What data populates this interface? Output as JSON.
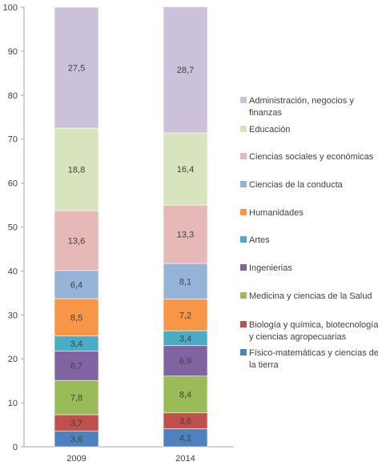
{
  "chart_data": {
    "type": "bar",
    "stacked": true,
    "categories": [
      "2009",
      "2014"
    ],
    "ylim": [
      0,
      100
    ],
    "yticks": [
      "0",
      "10",
      "20",
      "30",
      "40",
      "50",
      "60",
      "70",
      "80",
      "90",
      "100"
    ],
    "grid": false,
    "legend_position": "right",
    "series": [
      {
        "name": "Físico-matemáticas y ciencias de la tierra",
        "color": "#4f81bd",
        "values": [
          3.6,
          4.1
        ],
        "labels": [
          "3,6",
          "4,1"
        ]
      },
      {
        "name": "Biología y química, biotecnología y ciencias agropecuarias",
        "color": "#c0504d",
        "values": [
          3.7,
          3.6
        ],
        "labels": [
          "3,7",
          "3,6"
        ]
      },
      {
        "name": "Medicina y ciencias de la Salud",
        "color": "#9bbb59",
        "values": [
          7.8,
          8.4
        ],
        "labels": [
          "7,8",
          "8,4"
        ]
      },
      {
        "name": "Ingenierias",
        "color": "#8064a2",
        "values": [
          6.7,
          6.9
        ],
        "labels": [
          "6,7",
          "6,9"
        ]
      },
      {
        "name": "Artes",
        "color": "#4bacc6",
        "values": [
          3.4,
          3.4
        ],
        "labels": [
          "3,4",
          "3,4"
        ]
      },
      {
        "name": "Humanidades",
        "color": "#f79646",
        "values": [
          8.5,
          7.2
        ],
        "labels": [
          "8,5",
          "7,2"
        ]
      },
      {
        "name": "Ciencias de la conducta",
        "color": "#95b3d7",
        "values": [
          6.4,
          8.1
        ],
        "labels": [
          "6,4",
          "8,1"
        ]
      },
      {
        "name": "Ciencias sociales y económicas",
        "color": "#e6b9b8",
        "values": [
          13.6,
          13.3
        ],
        "labels": [
          "13,6",
          "13,3"
        ]
      },
      {
        "name": "Educación",
        "color": "#d7e4bd",
        "values": [
          18.8,
          16.4
        ],
        "labels": [
          "18,8",
          "16,4"
        ]
      },
      {
        "name": "Administración, negocios y finanzas",
        "color": "#ccc1da",
        "values": [
          27.5,
          28.7
        ],
        "labels": [
          "27,5",
          "28,7"
        ]
      }
    ]
  }
}
